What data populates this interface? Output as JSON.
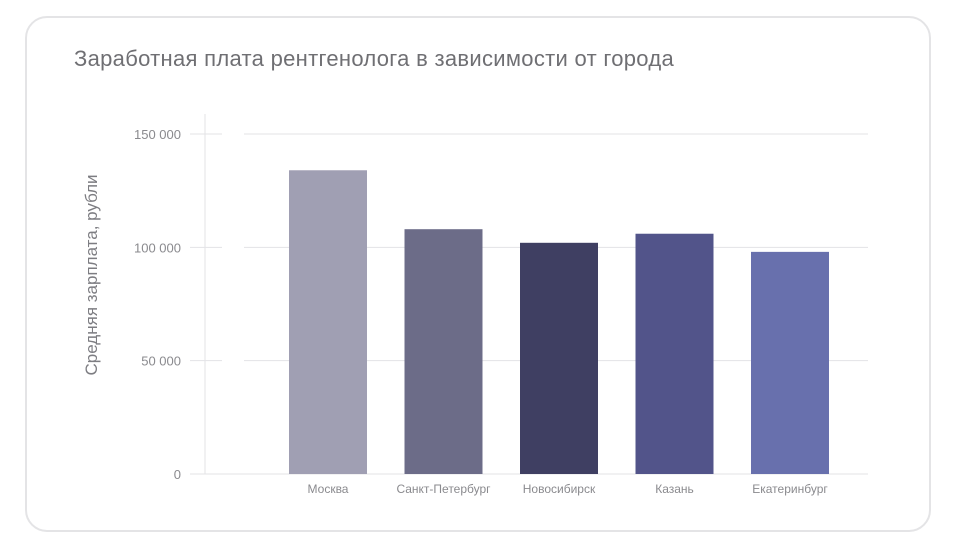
{
  "chart_data": {
    "type": "bar",
    "title": "Заработная плата рентгенолога в зависимости от города",
    "xlabel": "",
    "ylabel": "Средняя зарплата, рубли",
    "categories": [
      "Москва",
      "Санкт-Петербург",
      "Новосибирск",
      "Казань",
      "Екатеринбург"
    ],
    "values": [
      134000,
      108000,
      102000,
      106000,
      98000
    ],
    "colors": [
      "#a09fb3",
      "#6c6c88",
      "#3f3f62",
      "#52548a",
      "#6870ad"
    ],
    "ylim": [
      0,
      150000
    ],
    "yticks": [
      0,
      50000,
      100000,
      150000
    ],
    "ytick_labels": [
      "0",
      "50 000",
      "100 000",
      "150 000"
    ],
    "grid": true,
    "grid_color": "#e3e3e6",
    "legend": "none"
  }
}
